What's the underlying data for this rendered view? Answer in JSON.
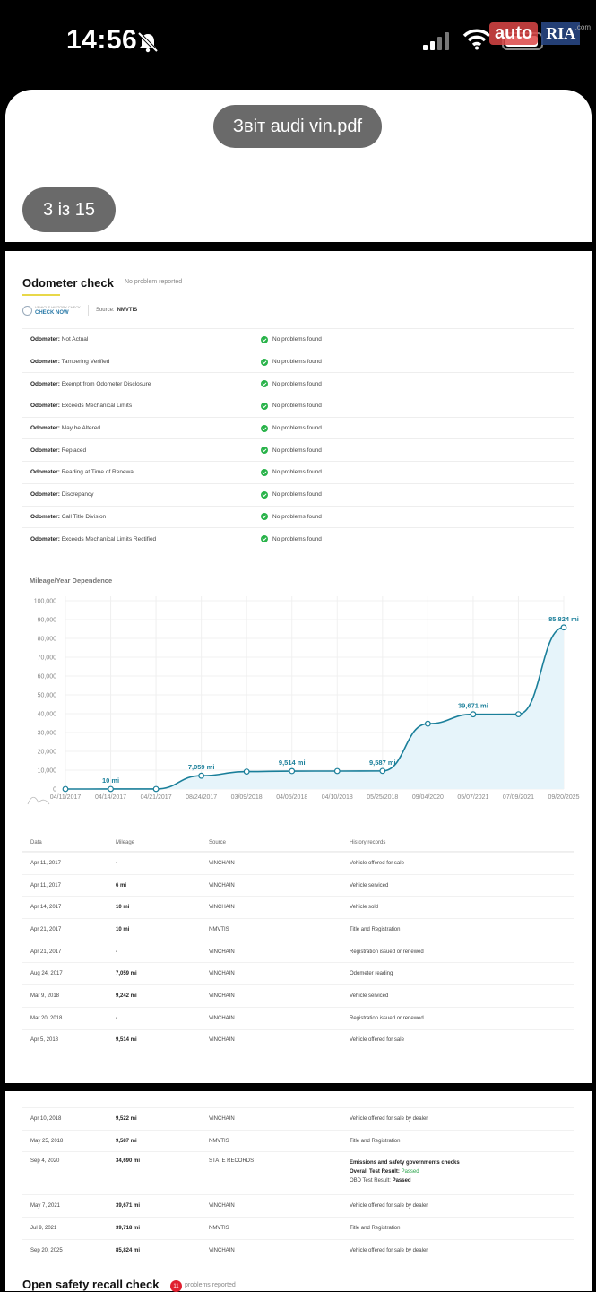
{
  "status_bar": {
    "time": "14:56",
    "logo_auto": "auto",
    "logo_ria": "RIA",
    "logo_com": ".com"
  },
  "viewer": {
    "file_name": "Звіт audi vin.pdf",
    "page_indicator": "3 із 15"
  },
  "odometer": {
    "title": "Odometer check",
    "note": "No problem reported",
    "check_small": "VEHICLE HISTORY CHECK",
    "check_big": "CHECK NOW",
    "source_label": "Source:",
    "source_value": "NMVTIS",
    "rows": [
      {
        "key": "Odometer:",
        "value": "Not Actual",
        "status": "No problems found"
      },
      {
        "key": "Odometer:",
        "value": "Tampering Verified",
        "status": "No problems found"
      },
      {
        "key": "Odometer:",
        "value": "Exempt from Odometer Disclosure",
        "status": "No problems found"
      },
      {
        "key": "Odometer:",
        "value": "Exceeds Mechanical Limits",
        "status": "No problems found"
      },
      {
        "key": "Odometer:",
        "value": "May be Altered",
        "status": "No problems found"
      },
      {
        "key": "Odometer:",
        "value": "Replaced",
        "status": "No problems found"
      },
      {
        "key": "Odometer:",
        "value": "Reading at Time of Renewal",
        "status": "No problems found"
      },
      {
        "key": "Odometer:",
        "value": "Discrepancy",
        "status": "No problems found"
      },
      {
        "key": "Odometer:",
        "value": "Call Title Division",
        "status": "No problems found"
      },
      {
        "key": "Odometer:",
        "value": "Exceeds Mechanical Limits Rectified",
        "status": "No problems found"
      }
    ]
  },
  "chart_data": {
    "type": "line",
    "title": "Mileage/Year Dependence",
    "categories": [
      "04/11/2017",
      "04/14/2017",
      "04/21/2017",
      "08/24/2017",
      "03/09/2018",
      "04/05/2018",
      "04/10/2018",
      "05/25/2018",
      "09/04/2020",
      "05/07/2021",
      "07/09/2021",
      "09/20/2025"
    ],
    "values": [
      0,
      10,
      10,
      7059,
      9242,
      9514,
      9522,
      9587,
      34690,
      39671,
      39718,
      85824
    ],
    "point_labels": [
      "",
      "10 mi",
      "",
      "7,059 mi",
      "",
      "9,514 mi",
      "",
      "9,587 mi",
      "",
      "39,671 mi",
      "",
      "85,824 mi"
    ],
    "yticks": [
      "0",
      "10,000",
      "20,000",
      "30,000",
      "40,000",
      "50,000",
      "60,000",
      "70,000",
      "80,000",
      "90,000",
      "100,000"
    ],
    "ylim": [
      0,
      100000
    ],
    "grid": true,
    "line_color": "#1a7f9a",
    "fill_color": "#e6f4fa"
  },
  "history": {
    "headers": {
      "date": "Data",
      "mileage": "Mileage",
      "source": "Source",
      "records": "History records"
    },
    "rows": [
      {
        "date": "Apr 11, 2017",
        "mileage": "-",
        "source": "VINCHAIN",
        "record": "Vehicle offered for sale"
      },
      {
        "date": "Apr 11, 2017",
        "mileage": "6 mi",
        "source": "VINCHAIN",
        "record": "Vehicle serviced"
      },
      {
        "date": "Apr 14, 2017",
        "mileage": "10 mi",
        "source": "VINCHAIN",
        "record": "Vehicle sold"
      },
      {
        "date": "Apr 21, 2017",
        "mileage": "10 mi",
        "source": "NMVTIS",
        "record": "Title and Registration"
      },
      {
        "date": "Apr 21, 2017",
        "mileage": "-",
        "source": "VINCHAIN",
        "record": "Registration issued or renewed"
      },
      {
        "date": "Aug 24, 2017",
        "mileage": "7,059 mi",
        "source": "VINCHAIN",
        "record": "Odometer reading"
      },
      {
        "date": "Mar 9, 2018",
        "mileage": "9,242 mi",
        "source": "VINCHAIN",
        "record": "Vehicle serviced"
      },
      {
        "date": "Mar 20, 2018",
        "mileage": "-",
        "source": "VINCHAIN",
        "record": "Registration issued or renewed"
      },
      {
        "date": "Apr 5, 2018",
        "mileage": "9,514 mi",
        "source": "VINCHAIN",
        "record": "Vehicle offered for sale"
      }
    ],
    "rows2": [
      {
        "date": "Apr 10, 2018",
        "mileage": "9,522 mi",
        "source": "VINCHAIN",
        "record": "Vehicle offered for sale by dealer"
      },
      {
        "date": "May 25, 2018",
        "mileage": "9,587 mi",
        "source": "NMVTIS",
        "record": "Title and Registration"
      }
    ],
    "emissions": {
      "date": "Sep 4, 2020",
      "mileage": "34,690 mi",
      "source": "STATE RECORDS",
      "title": "Emissions and safety governments checks",
      "overall_label": "Overall Test Result:",
      "overall_value": "Passed",
      "obd_label": "OBD Test Result:",
      "obd_value": "Passed"
    },
    "rows3": [
      {
        "date": "May 7, 2021",
        "mileage": "39,671 mi",
        "source": "VINCHAIN",
        "record": "Vehicle offered for sale by dealer"
      },
      {
        "date": "Jul 9, 2021",
        "mileage": "39,718 mi",
        "source": "NMVTIS",
        "record": "Title and Registration"
      },
      {
        "date": "Sep 20, 2025",
        "mileage": "85,824 mi",
        "source": "VINCHAIN",
        "record": "Vehicle offered for sale by dealer"
      }
    ]
  },
  "recall": {
    "title": "Open safety recall check",
    "count": "11",
    "note": "problems reported"
  }
}
